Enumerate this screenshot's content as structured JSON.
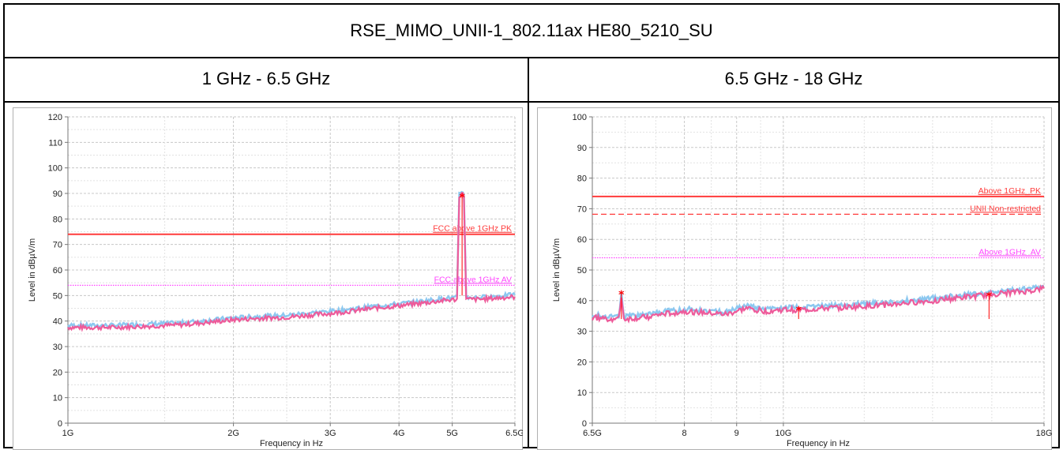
{
  "page": {
    "title": "RSE_MIMO_UNII-1_802.11ax HE80_5210_SU",
    "headers": [
      "1 GHz - 6.5 GHz",
      "6.5 GHz - 18 GHz"
    ]
  },
  "colors": {
    "limit_pk": "#ff3b3b",
    "limit_av": "#ff44ff",
    "trace_pk": "#8cc8f0",
    "trace_av": "#ee5b9a",
    "marker": "#ff0000",
    "grid": "#c8c8c8"
  },
  "chart_data": [
    {
      "type": "line",
      "title": "",
      "xlabel": "Frequency in Hz",
      "ylabel": "Level in dBµV/m",
      "x_scale": "log",
      "xlim": [
        1,
        6.5
      ],
      "ylim": [
        0,
        120
      ],
      "grid": true,
      "x_ticks": [
        {
          "value": 1,
          "label": "1G"
        },
        {
          "value": 2,
          "label": "2G"
        },
        {
          "value": 3,
          "label": "3G"
        },
        {
          "value": 4,
          "label": "4G"
        },
        {
          "value": 5,
          "label": "5G"
        },
        {
          "value": 6.5,
          "label": "6.5G"
        }
      ],
      "y_ticks": [
        0,
        10,
        20,
        30,
        40,
        50,
        60,
        70,
        80,
        90,
        100,
        110,
        120
      ],
      "limits": [
        {
          "name": "FCC above 1GHz PK",
          "value": 74,
          "style": "solid",
          "color": "#ff3b3b"
        },
        {
          "name": "FCC above 1GHz AV",
          "value": 54,
          "style": "dotted",
          "color": "#ff44ff"
        }
      ],
      "series": [
        {
          "x": [
            1.0,
            1.2,
            1.4,
            1.6,
            1.8,
            2.0,
            2.2,
            2.5,
            2.8,
            3.0,
            3.3,
            3.6,
            4.0,
            4.4,
            4.8,
            5.1,
            5.15,
            5.2,
            5.25,
            5.3,
            5.6,
            6.0,
            6.5
          ],
          "y": [
            37.5,
            37.5,
            38,
            38.5,
            39.5,
            40.5,
            41,
            41.5,
            42.5,
            43,
            44,
            45,
            46,
            47,
            48,
            48.5,
            89,
            90,
            89,
            48.5,
            48.5,
            49,
            49.5
          ]
        }
      ],
      "markers": [
        {
          "x": 5.21,
          "y": 88.5
        }
      ]
    },
    {
      "type": "line",
      "title": "",
      "xlabel": "Frequency in Hz",
      "ylabel": "Level in dBµV/m",
      "x_scale": "log",
      "xlim": [
        6.5,
        18
      ],
      "ylim": [
        0,
        100
      ],
      "grid": true,
      "x_ticks": [
        {
          "value": 6.5,
          "label": "6.5G"
        },
        {
          "value": 8,
          "label": "8"
        },
        {
          "value": 9,
          "label": "9"
        },
        {
          "value": 10,
          "label": "10G"
        },
        {
          "value": 18,
          "label": "18G"
        }
      ],
      "y_ticks": [
        0,
        10,
        20,
        30,
        40,
        50,
        60,
        70,
        80,
        90,
        100
      ],
      "limits": [
        {
          "name": "Above 1GHz_PK",
          "value": 74,
          "style": "solid",
          "color": "#ff3b3b"
        },
        {
          "name": "UNII Non-restricted",
          "value": 68.2,
          "style": "dashed",
          "color": "#ff3b3b"
        },
        {
          "name": "Above 1GHz_AV",
          "value": 54,
          "style": "dotted",
          "color": "#ff44ff"
        }
      ],
      "series": [
        {
          "x": [
            6.5,
            6.8,
            6.9,
            6.94,
            6.98,
            7.0,
            7.3,
            7.6,
            8.0,
            8.4,
            8.8,
            9.2,
            9.6,
            10.0,
            10.5,
            11.0,
            11.8,
            12.5,
            13.5,
            14.5,
            15.5,
            16.5,
            17.3,
            18.0
          ],
          "y": [
            34.5,
            34,
            34,
            41.5,
            34,
            34,
            34.5,
            35.5,
            36.5,
            36,
            35.5,
            37.5,
            36.5,
            37,
            37,
            37.5,
            38,
            38.5,
            39.5,
            40.5,
            41.5,
            42.5,
            43,
            44
          ]
        }
      ],
      "markers": [
        {
          "x": 6.94,
          "y": 42
        },
        {
          "x": 10.35,
          "y": 36.8
        },
        {
          "x": 15.9,
          "y": 41.5
        }
      ]
    }
  ]
}
